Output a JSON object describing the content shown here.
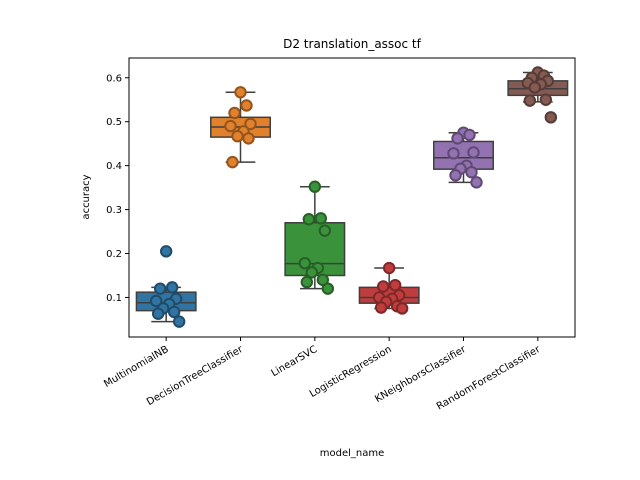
{
  "chart_data": {
    "type": "box",
    "title": "D2 translation_assoc tf",
    "xlabel": "model_name",
    "ylabel": "accuracy",
    "ylim": [
      0.01,
      0.645
    ],
    "yticks": [
      0.1,
      0.2,
      0.3,
      0.4,
      0.5,
      0.6
    ],
    "ytick_labels": [
      "0.1",
      "0.2",
      "0.3",
      "0.4",
      "0.5",
      "0.6"
    ],
    "grid": false,
    "legend": "none",
    "categories": [
      "MultinomialNB",
      "DecisionTreeClassifier",
      "LinearSVC",
      "LogisticRegression",
      "KNeighborsClassifier",
      "RandomForestClassifier"
    ],
    "series": [
      {
        "color": "#3274a1",
        "edge": "#1f4c6b",
        "box": {
          "q1": 0.07,
          "median": 0.088,
          "q3": 0.112,
          "whisker_low": 0.045,
          "whisker_high": 0.123
        },
        "points": [
          0.205,
          0.123,
          0.12,
          0.097,
          0.092,
          0.085,
          0.075,
          0.067,
          0.063,
          0.045
        ]
      },
      {
        "color": "#e1812c",
        "edge": "#94541d",
        "box": {
          "q1": 0.465,
          "median": 0.488,
          "q3": 0.51,
          "whisker_low": 0.408,
          "whisker_high": 0.567
        },
        "points": [
          0.567,
          0.537,
          0.52,
          0.495,
          0.49,
          0.478,
          0.467,
          0.462,
          0.408
        ]
      },
      {
        "color": "#3a923a",
        "edge": "#275f27",
        "box": {
          "q1": 0.15,
          "median": 0.177,
          "q3": 0.27,
          "whisker_low": 0.12,
          "whisker_high": 0.352
        },
        "points": [
          0.352,
          0.28,
          0.278,
          0.252,
          0.178,
          0.167,
          0.157,
          0.14,
          0.135,
          0.12
        ]
      },
      {
        "color": "#c03d3e",
        "edge": "#7f2829",
        "box": {
          "q1": 0.087,
          "median": 0.1,
          "q3": 0.123,
          "whisker_low": 0.075,
          "whisker_high": 0.167
        },
        "points": [
          0.167,
          0.128,
          0.125,
          0.105,
          0.1,
          0.097,
          0.09,
          0.08,
          0.077,
          0.075
        ]
      },
      {
        "color": "#9372b2",
        "edge": "#604a74",
        "box": {
          "q1": 0.392,
          "median": 0.418,
          "q3": 0.455,
          "whisker_low": 0.362,
          "whisker_high": 0.475
        },
        "points": [
          0.475,
          0.47,
          0.462,
          0.43,
          0.428,
          0.4,
          0.393,
          0.385,
          0.378,
          0.362
        ]
      },
      {
        "color": "#845b53",
        "edge": "#563b36",
        "box": {
          "q1": 0.56,
          "median": 0.575,
          "q3": 0.593,
          "whisker_low": 0.545,
          "whisker_high": 0.612
        },
        "points": [
          0.612,
          0.605,
          0.6,
          0.593,
          0.588,
          0.585,
          0.578,
          0.55,
          0.548,
          0.51
        ]
      }
    ]
  }
}
